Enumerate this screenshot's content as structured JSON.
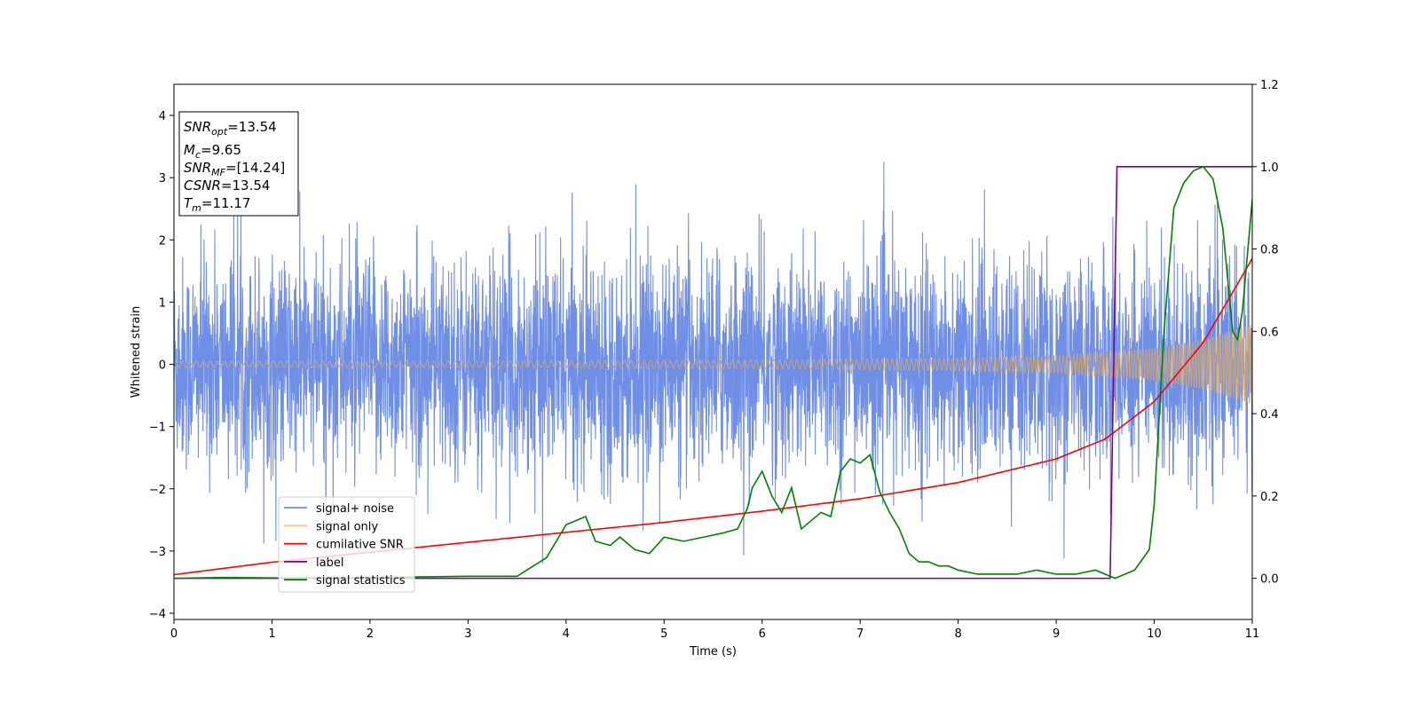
{
  "chart_data": {
    "type": "line",
    "xlabel": "Time (s)",
    "ylabel": "Whitened strain",
    "xlim": [
      0,
      11
    ],
    "ylim": [
      -4.1,
      4.5
    ],
    "y2lim": [
      -0.1,
      1.2
    ],
    "xticks": [
      0,
      1,
      2,
      3,
      4,
      5,
      6,
      7,
      8,
      9,
      10,
      11
    ],
    "yticks": [
      -4,
      -3,
      -2,
      -1,
      0,
      1,
      2,
      3,
      4
    ],
    "y2ticks": [
      0.0,
      0.2,
      0.4,
      0.6,
      0.8,
      1.0,
      1.2
    ],
    "ytick_labels": [
      "−4",
      "−3",
      "−2",
      "−1",
      "0",
      "1",
      "2",
      "3",
      "4"
    ],
    "y2tick_labels": [
      "0.0",
      "0.2",
      "0.4",
      "0.6",
      "0.8",
      "1.0",
      "1.2"
    ],
    "grid": false,
    "legend_position": "lower-left",
    "series": [
      {
        "name": "signal+ noise",
        "color": "#6f8ee6",
        "axis": "left",
        "description_values": {
          "mean": 0,
          "std": 0.85,
          "min": -3.75,
          "max": 4.15
        }
      },
      {
        "name": "signal only",
        "color": "#f5c98a",
        "axis": "left",
        "envelope": {
          "x": [
            0,
            2,
            4,
            6,
            8,
            9,
            10,
            10.5,
            11
          ],
          "amp": [
            0.05,
            0.05,
            0.06,
            0.07,
            0.1,
            0.14,
            0.26,
            0.4,
            0.64
          ]
        }
      },
      {
        "name": "cumilative SNR",
        "color": "#ff0000",
        "axis": "left",
        "x": [
          0,
          1,
          2,
          3,
          4,
          5,
          6,
          7,
          8,
          9,
          9.5,
          10,
          10.5,
          11
        ],
        "y": [
          -3.38,
          -3.18,
          -3.02,
          -2.86,
          -2.7,
          -2.54,
          -2.36,
          -2.16,
          -1.9,
          -1.52,
          -1.2,
          -0.6,
          0.35,
          1.7
        ]
      },
      {
        "name": "label",
        "color": "#800080",
        "axis": "right",
        "x": [
          0,
          9.55,
          9.62,
          11
        ],
        "y": [
          0,
          0,
          1,
          1
        ]
      },
      {
        "name": "signal statistics",
        "color": "#008000",
        "axis": "right",
        "x": [
          0,
          0.5,
          1,
          2,
          3,
          3.5,
          3.6,
          3.8,
          4.0,
          4.2,
          4.3,
          4.45,
          4.55,
          4.7,
          4.85,
          5.0,
          5.2,
          5.4,
          5.6,
          5.75,
          5.85,
          5.9,
          6.0,
          6.1,
          6.2,
          6.3,
          6.4,
          6.5,
          6.6,
          6.7,
          6.8,
          6.9,
          7.0,
          7.1,
          7.2,
          7.3,
          7.4,
          7.5,
          7.6,
          7.7,
          7.8,
          7.9,
          8.0,
          8.2,
          8.4,
          8.6,
          8.8,
          9.0,
          9.2,
          9.4,
          9.5,
          9.6,
          9.7,
          9.8,
          9.95,
          10.0,
          10.1,
          10.2,
          10.3,
          10.4,
          10.5,
          10.6,
          10.7,
          10.8,
          10.85,
          10.9,
          11.0
        ],
        "y": [
          0.0,
          0.002,
          0.001,
          0.002,
          0.005,
          0.005,
          0.02,
          0.05,
          0.13,
          0.15,
          0.09,
          0.08,
          0.1,
          0.07,
          0.06,
          0.1,
          0.09,
          0.1,
          0.11,
          0.12,
          0.17,
          0.22,
          0.26,
          0.2,
          0.16,
          0.22,
          0.12,
          0.14,
          0.16,
          0.15,
          0.26,
          0.29,
          0.28,
          0.3,
          0.21,
          0.16,
          0.12,
          0.06,
          0.04,
          0.04,
          0.03,
          0.03,
          0.02,
          0.01,
          0.01,
          0.01,
          0.02,
          0.01,
          0.01,
          0.02,
          0.01,
          0.0,
          0.01,
          0.02,
          0.07,
          0.18,
          0.6,
          0.9,
          0.96,
          0.99,
          1.0,
          0.97,
          0.85,
          0.6,
          0.58,
          0.65,
          0.92
        ]
      }
    ]
  },
  "annotation": {
    "lines": [
      {
        "base": "SNR",
        "sub": "opt",
        "rest": "=13.54"
      },
      {
        "base": "M",
        "sub": "c",
        "rest": "=9.65"
      },
      {
        "base": "SNR",
        "sub": "MF",
        "rest": "=[14.24]"
      },
      {
        "base": "CSNR",
        "sub": "",
        "rest": "=13.54"
      },
      {
        "base": "T",
        "sub": "m",
        "rest": "=11.17"
      }
    ]
  }
}
